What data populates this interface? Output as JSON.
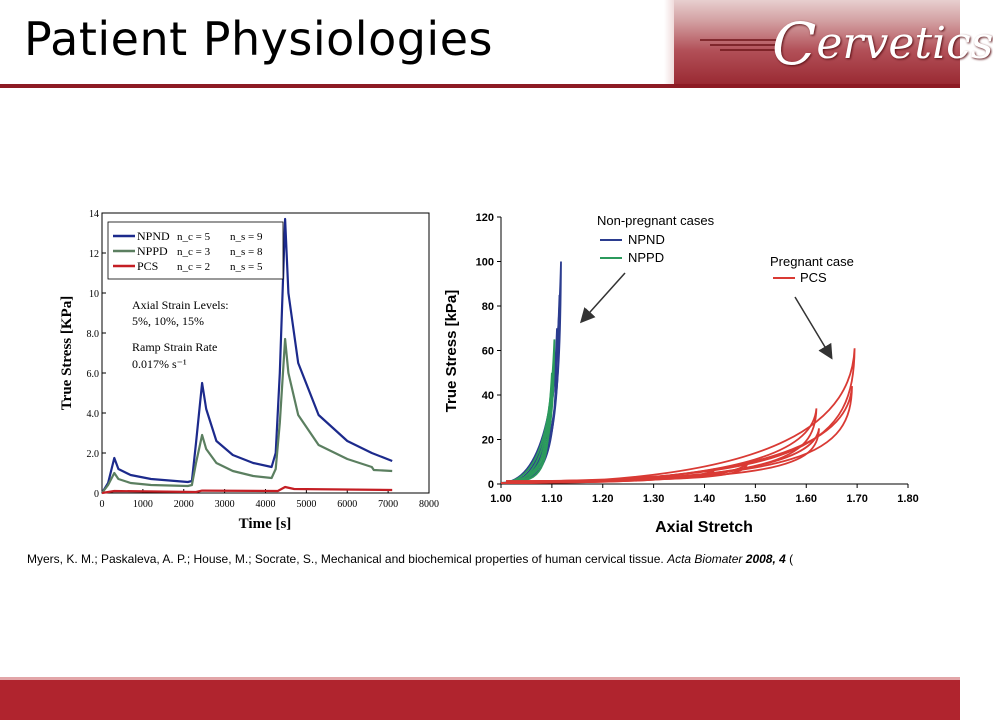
{
  "slide": {
    "title": "Patient Physiologies",
    "logo_text": "Cervetics",
    "logo_initial": "C",
    "logo_rest": "ervetics",
    "citation_plain": "Myers, K. M.; Paskaleva, A. P.; House, M.; Socrate, S., Mechanical and biochemical properties of human cervical tissue. ",
    "citation_journal": "Acta Biomater",
    "citation_volume": " 2008, 4",
    "citation_tail": " ("
  },
  "colors": {
    "npnd": "#1c2a8c",
    "nppd": "#5b7f60",
    "pcs": "#c41e24",
    "right_npnd": "#2b3c8f",
    "right_nppd": "#2b9a5c",
    "right_pcs": "#d93a34",
    "accent": "#b0242e"
  },
  "chart_data": [
    {
      "type": "line",
      "xlabel": "Time [s]",
      "ylabel": "True Stress [KPa]",
      "xlim": [
        0,
        8000
      ],
      "ylim": [
        0,
        14
      ],
      "xticks": [
        "0",
        "1000",
        "2000",
        "3000",
        "4000",
        "5000",
        "6000",
        "7000",
        "8000"
      ],
      "yticks": [
        "0",
        "2.0",
        "4.0",
        "6.0",
        "8.0",
        "10",
        "12",
        "14"
      ],
      "legend": [
        {
          "name": "NPND",
          "nc": "n_c = 5",
          "ns": "n_s = 9"
        },
        {
          "name": "NPPD",
          "nc": "n_c = 3",
          "ns": "n_s = 8"
        },
        {
          "name": "PCS",
          "nc": "n_c = 2",
          "ns": "n_s = 5"
        }
      ],
      "annotations": {
        "strain_title": "Axial Strain Levels:",
        "strain_values": "5%, 10%, 15%",
        "rate_title": "Ramp Strain Rate",
        "rate_value": "0.017% s⁻¹"
      },
      "series": [
        {
          "name": "NPND",
          "points": [
            [
              0,
              0
            ],
            [
              150,
              0.5
            ],
            [
              300,
              1.75
            ],
            [
              400,
              1.2
            ],
            [
              700,
              0.9
            ],
            [
              1200,
              0.7
            ],
            [
              2100,
              0.55
            ],
            [
              2200,
              0.6
            ],
            [
              2300,
              2.5
            ],
            [
              2450,
              5.5
            ],
            [
              2550,
              4.2
            ],
            [
              2800,
              2.6
            ],
            [
              3200,
              1.9
            ],
            [
              3700,
              1.5
            ],
            [
              4150,
              1.3
            ],
            [
              4250,
              2.0
            ],
            [
              4350,
              6.0
            ],
            [
              4480,
              13.7
            ],
            [
              4560,
              10.0
            ],
            [
              4800,
              6.5
            ],
            [
              5300,
              3.9
            ],
            [
              6000,
              2.6
            ],
            [
              6600,
              2.0
            ],
            [
              7100,
              1.6
            ]
          ]
        },
        {
          "name": "NPPD",
          "points": [
            [
              0,
              0
            ],
            [
              150,
              0.4
            ],
            [
              300,
              1.0
            ],
            [
              400,
              0.7
            ],
            [
              700,
              0.5
            ],
            [
              1200,
              0.4
            ],
            [
              2100,
              0.35
            ],
            [
              2200,
              0.4
            ],
            [
              2300,
              1.5
            ],
            [
              2450,
              2.9
            ],
            [
              2550,
              2.2
            ],
            [
              2800,
              1.5
            ],
            [
              3200,
              1.1
            ],
            [
              3700,
              0.85
            ],
            [
              4150,
              0.75
            ],
            [
              4250,
              1.2
            ],
            [
              4350,
              3.5
            ],
            [
              4480,
              7.7
            ],
            [
              4560,
              6.0
            ],
            [
              4800,
              3.9
            ],
            [
              5300,
              2.4
            ],
            [
              6000,
              1.7
            ],
            [
              6600,
              1.3
            ],
            [
              6650,
              1.15
            ],
            [
              7100,
              1.1
            ]
          ]
        },
        {
          "name": "PCS",
          "points": [
            [
              0,
              0
            ],
            [
              300,
              0.1
            ],
            [
              2300,
              0.05
            ],
            [
              2450,
              0.12
            ],
            [
              4300,
              0.1
            ],
            [
              4480,
              0.3
            ],
            [
              4700,
              0.2
            ],
            [
              7100,
              0.15
            ]
          ]
        }
      ]
    },
    {
      "type": "line",
      "xlabel": "Axial Stretch",
      "ylabel": "True Stress [kPa]",
      "xlim": [
        1.0,
        1.8
      ],
      "ylim": [
        0,
        120
      ],
      "xticks": [
        "1.00",
        "1.10",
        "1.20",
        "1.30",
        "1.40",
        "1.50",
        "1.60",
        "1.70",
        "1.80"
      ],
      "yticks": [
        "0",
        "20",
        "40",
        "60",
        "80",
        "100",
        "120"
      ],
      "legend_groups": [
        {
          "title": "Non-pregnant cases",
          "items": [
            "NPND",
            "NPPD"
          ]
        },
        {
          "title": "Pregnant case",
          "items": [
            "PCS"
          ]
        }
      ],
      "series": [
        {
          "name": "NPND",
          "peaks": [
            [
              1.118,
              100
            ],
            [
              1.115,
              85
            ],
            [
              1.11,
              70
            ]
          ]
        },
        {
          "name": "NPPD",
          "peaks": [
            [
              1.105,
              65
            ],
            [
              1.1,
              50
            ],
            [
              1.095,
              35
            ]
          ]
        },
        {
          "name": "PCS",
          "peaks": [
            [
              1.42,
              7
            ],
            [
              1.485,
              10
            ],
            [
              1.62,
              34
            ],
            [
              1.625,
              25
            ],
            [
              1.69,
              44
            ],
            [
              1.695,
              61
            ]
          ]
        }
      ]
    }
  ]
}
